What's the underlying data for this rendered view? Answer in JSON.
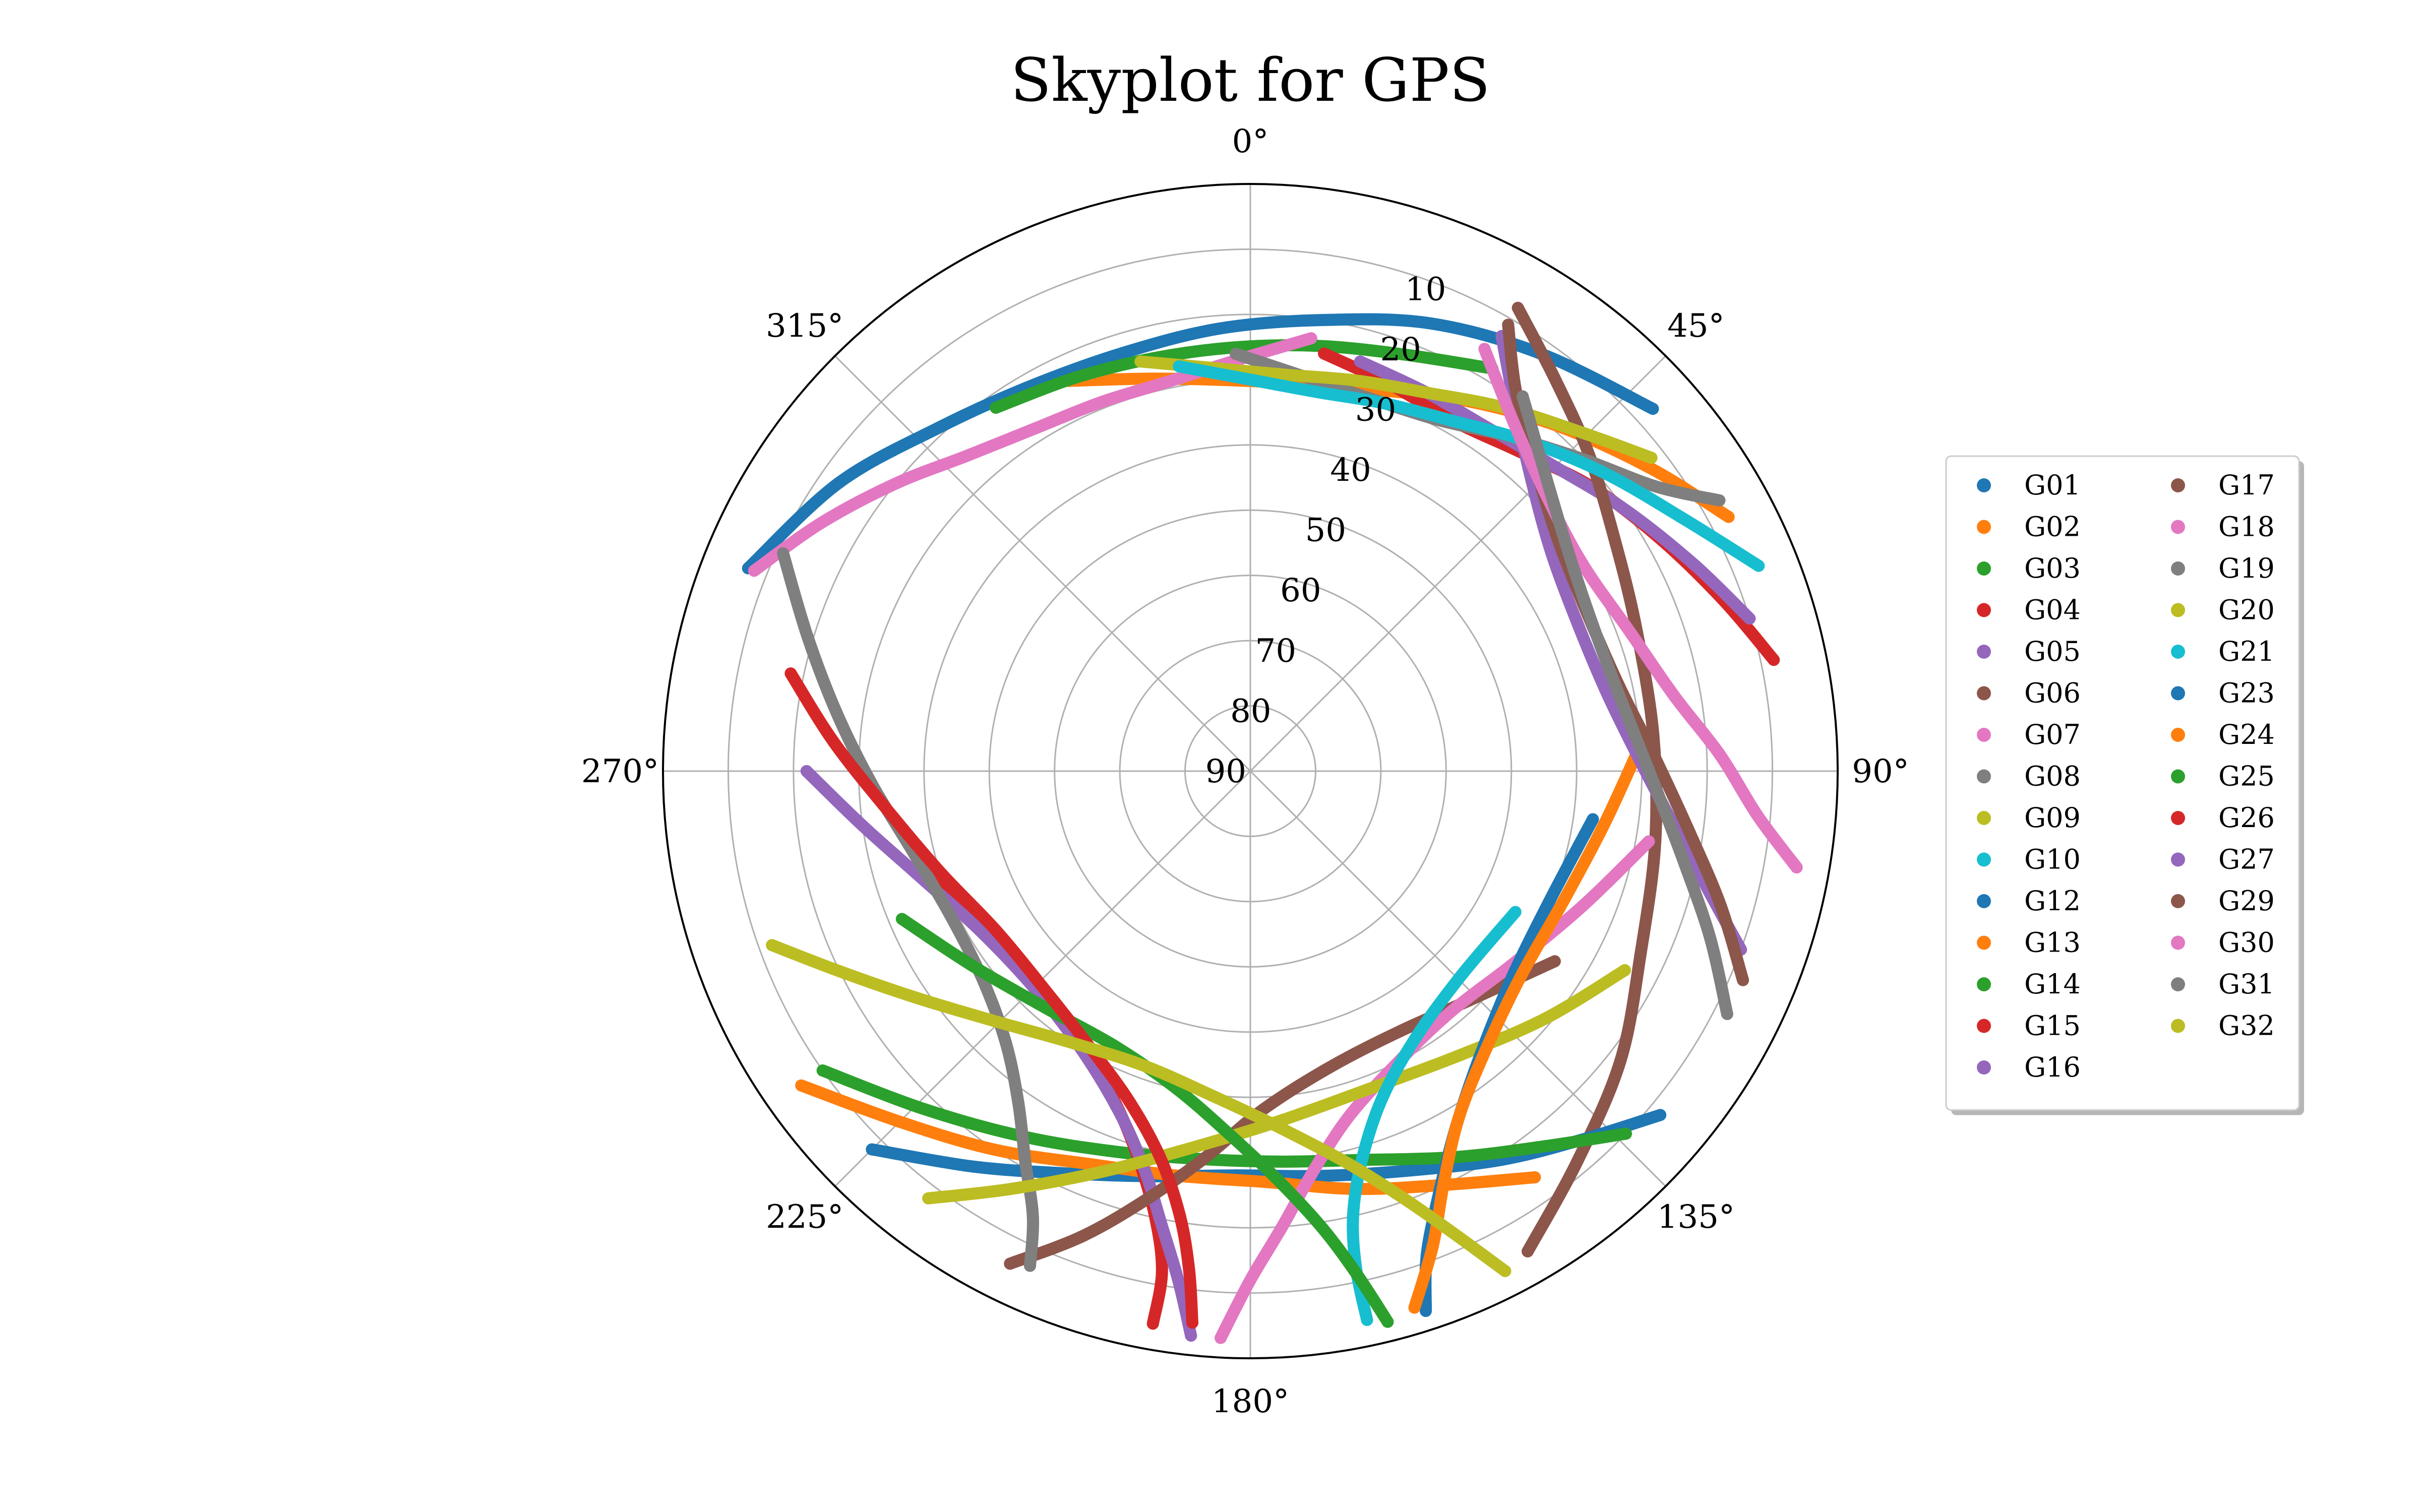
{
  "chart_data": {
    "type": "polar-scatter",
    "title": "Skyplot for GPS",
    "theta_direction": "clockwise",
    "theta_zero": "north",
    "radial_axis": "elevation",
    "rlim": [
      90,
      0
    ],
    "angle_ticks": [
      "0°",
      "45°",
      "90°",
      "135°",
      "180°",
      "225°",
      "270°",
      "315°"
    ],
    "radial_ticks": [
      "10",
      "20",
      "30",
      "40",
      "50",
      "60",
      "70",
      "80",
      "90"
    ],
    "grid": true,
    "legend_placement": "right",
    "legend_columns": 2,
    "series": [
      {
        "name": "G01",
        "color": "#1f77b4",
        "points": [
          [
            292,
            7
          ],
          [
            305,
            13
          ],
          [
            318,
            19
          ],
          [
            330,
            22
          ],
          [
            343,
            23
          ],
          [
            356,
            22
          ],
          [
            9,
            20
          ],
          [
            22,
            16
          ],
          [
            35,
            12
          ],
          [
            48,
            7
          ]
        ]
      },
      {
        "name": "G02",
        "color": "#ff7f0e",
        "points": [
          [
            335,
            24
          ],
          [
            346,
            28
          ],
          [
            357,
            30
          ],
          [
            9,
            30
          ],
          [
            20,
            28
          ],
          [
            31,
            24
          ],
          [
            42,
            19
          ],
          [
            53,
            13
          ],
          [
            62,
            7
          ]
        ]
      },
      {
        "name": "G03",
        "color": "#2ca02c",
        "points": [
          [
            325,
            22
          ],
          [
            336,
            24
          ],
          [
            347,
            25
          ],
          [
            358,
            25
          ],
          [
            9,
            24
          ],
          [
            20,
            22
          ],
          [
            31,
            18
          ]
        ]
      },
      {
        "name": "G04",
        "color": "#d62728",
        "points": [
          [
            10,
            25
          ],
          [
            20,
            27
          ],
          [
            30,
            28
          ],
          [
            40,
            26
          ],
          [
            50,
            22
          ],
          [
            60,
            18
          ],
          [
            70,
            13
          ],
          [
            78,
            8
          ]
        ]
      },
      {
        "name": "G05",
        "color": "#9467bd",
        "points": [
          [
            15,
            25
          ],
          [
            25,
            26
          ],
          [
            35,
            26
          ],
          [
            45,
            24
          ],
          [
            55,
            20
          ],
          [
            65,
            15
          ],
          [
            73,
            10
          ]
        ]
      },
      {
        "name": "G06",
        "color": "#8c564b",
        "points": [
          [
            150,
            5
          ],
          [
            140,
            12
          ],
          [
            128,
            18
          ],
          [
            115,
            24
          ],
          [
            100,
            27
          ],
          [
            85,
            28
          ],
          [
            70,
            27
          ],
          [
            58,
            24
          ],
          [
            47,
            19
          ],
          [
            38,
            14
          ],
          [
            30,
            8
          ]
        ]
      },
      {
        "name": "G07",
        "color": "#e377c2",
        "points": [
          [
            292,
            8
          ],
          [
            300,
            14
          ],
          [
            309,
            20
          ],
          [
            318,
            25
          ],
          [
            328,
            28
          ],
          [
            338,
            29
          ],
          [
            348,
            29
          ],
          [
            358,
            27
          ],
          [
            8,
            23
          ]
        ]
      },
      {
        "name": "G08",
        "color": "#7f7f7f",
        "points": [
          [
            60,
            7
          ],
          [
            55,
            14
          ],
          [
            47,
            20
          ],
          [
            38,
            25
          ],
          [
            28,
            29
          ],
          [
            18,
            30
          ],
          [
            8,
            29
          ],
          [
            358,
            26
          ]
        ]
      },
      {
        "name": "G09",
        "color": "#bcbd22",
        "points": [
          [
            345,
            25
          ],
          [
            355,
            28
          ],
          [
            5,
            29
          ],
          [
            15,
            28
          ],
          [
            25,
            26
          ],
          [
            35,
            22
          ],
          [
            45,
            17
          ],
          [
            52,
            12
          ]
        ]
      },
      {
        "name": "G10",
        "color": "#17becf",
        "points": [
          [
            350,
            27
          ],
          [
            0,
            30
          ],
          [
            10,
            31
          ],
          [
            20,
            30
          ],
          [
            30,
            28
          ],
          [
            40,
            24
          ],
          [
            50,
            19
          ],
          [
            60,
            13
          ],
          [
            68,
            6
          ]
        ]
      },
      {
        "name": "G12",
        "color": "#1f77b4",
        "points": [
          [
            225,
            8
          ],
          [
            215,
            16
          ],
          [
            205,
            22
          ],
          [
            194,
            26
          ],
          [
            182,
            28
          ],
          [
            170,
            27
          ],
          [
            158,
            24
          ],
          [
            147,
            19
          ],
          [
            138,
            14
          ],
          [
            130,
            8
          ]
        ]
      },
      {
        "name": "G13",
        "color": "#ff7f0e",
        "points": [
          [
            235,
            6
          ],
          [
            225,
            14
          ],
          [
            214,
            20
          ],
          [
            202,
            25
          ],
          [
            190,
            27
          ],
          [
            178,
            27
          ],
          [
            166,
            24
          ],
          [
            155,
            20
          ],
          [
            145,
            14
          ]
        ]
      },
      {
        "name": "G14",
        "color": "#2ca02c",
        "points": [
          [
            235,
            10
          ],
          [
            224,
            18
          ],
          [
            212,
            24
          ],
          [
            200,
            28
          ],
          [
            188,
            30
          ],
          [
            176,
            30
          ],
          [
            164,
            28
          ],
          [
            152,
            23
          ],
          [
            142,
            17
          ],
          [
            134,
            10
          ]
        ]
      },
      {
        "name": "G15",
        "color": "#d62728",
        "points": [
          [
            190,
            4
          ],
          [
            190,
            12
          ],
          [
            192,
            20
          ],
          [
            196,
            28
          ],
          [
            202,
            35
          ],
          [
            212,
            41
          ],
          [
            225,
            44
          ],
          [
            240,
            43
          ],
          [
            252,
            39
          ]
        ]
      },
      {
        "name": "G16",
        "color": "#9467bd",
        "points": [
          [
            186,
            3
          ],
          [
            188,
            11
          ],
          [
            191,
            19
          ],
          [
            195,
            27
          ],
          [
            201,
            34
          ],
          [
            211,
            40
          ],
          [
            224,
            43
          ],
          [
            239,
            42
          ],
          [
            252,
            37
          ],
          [
            262,
            30
          ],
          [
            270,
            22
          ]
        ]
      },
      {
        "name": "G17",
        "color": "#8c564b",
        "points": [
          [
            206,
            6
          ],
          [
            200,
            14
          ],
          [
            194,
            22
          ],
          [
            187,
            30
          ],
          [
            178,
            38
          ],
          [
            165,
            43
          ],
          [
            150,
            44
          ],
          [
            135,
            41
          ],
          [
            122,
            35
          ]
        ]
      },
      {
        "name": "G18",
        "color": "#e377c2",
        "points": [
          [
            183,
            3
          ],
          [
            180,
            12
          ],
          [
            176,
            20
          ],
          [
            171,
            28
          ],
          [
            164,
            35
          ],
          [
            153,
            40
          ],
          [
            140,
            42
          ],
          [
            126,
            40
          ],
          [
            112,
            35
          ],
          [
            100,
            28
          ]
        ]
      },
      {
        "name": "G19",
        "color": "#7f7f7f",
        "points": [
          [
            204,
            7
          ],
          [
            206,
            14
          ],
          [
            210,
            21
          ],
          [
            215,
            28
          ],
          [
            222,
            34
          ],
          [
            232,
            38
          ],
          [
            244,
            39
          ],
          [
            256,
            37
          ],
          [
            268,
            32
          ],
          [
            278,
            26
          ],
          [
            287,
            19
          ],
          [
            295,
            11
          ]
        ]
      },
      {
        "name": "G20",
        "color": "#bcbd22",
        "points": [
          [
            217,
            8
          ],
          [
            210,
            16
          ],
          [
            201,
            24
          ],
          [
            190,
            31
          ],
          [
            176,
            36
          ],
          [
            160,
            38
          ],
          [
            144,
            36
          ],
          [
            130,
            31
          ],
          [
            118,
            25
          ]
        ]
      },
      {
        "name": "G21",
        "color": "#17becf",
        "points": [
          [
            168,
            4
          ],
          [
            168,
            12
          ],
          [
            167,
            20
          ],
          [
            164,
            28
          ],
          [
            158,
            36
          ],
          [
            148,
            42
          ],
          [
            134,
            45
          ],
          [
            118,
            44
          ]
        ]
      },
      {
        "name": "G23",
        "color": "#1f77b4",
        "points": [
          [
            162,
            3
          ],
          [
            160,
            11
          ],
          [
            156,
            19
          ],
          [
            150,
            27
          ],
          [
            141,
            34
          ],
          [
            128,
            39
          ],
          [
            113,
            40
          ],
          [
            98,
            37
          ]
        ]
      },
      {
        "name": "G24",
        "color": "#ff7f0e",
        "points": [
          [
            163,
            4
          ],
          [
            159,
            12
          ],
          [
            155,
            20
          ],
          [
            149,
            28
          ],
          [
            140,
            34
          ],
          [
            127,
            38
          ],
          [
            112,
            38
          ],
          [
            98,
            35
          ],
          [
            86,
            30
          ]
        ]
      },
      {
        "name": "G25",
        "color": "#2ca02c",
        "points": [
          [
            166,
            3
          ],
          [
            168,
            11
          ],
          [
            171,
            19
          ],
          [
            176,
            27
          ],
          [
            183,
            34
          ],
          [
            193,
            40
          ],
          [
            206,
            43
          ],
          [
            221,
            42
          ],
          [
            235,
            38
          ],
          [
            247,
            32
          ]
        ]
      },
      {
        "name": "G26",
        "color": "#d62728",
        "points": [
          [
            186,
            5
          ],
          [
            187,
            13
          ],
          [
            189,
            21
          ],
          [
            193,
            29
          ],
          [
            200,
            36
          ],
          [
            210,
            41
          ],
          [
            223,
            44
          ],
          [
            238,
            44
          ],
          [
            252,
            40
          ],
          [
            264,
            34
          ],
          [
            274,
            26
          ],
          [
            282,
            18
          ]
        ]
      },
      {
        "name": "G27",
        "color": "#9467bd",
        "points": [
          [
            110,
            10
          ],
          [
            105,
            17
          ],
          [
            98,
            24
          ],
          [
            89,
            30
          ],
          [
            78,
            34
          ],
          [
            66,
            35
          ],
          [
            54,
            33
          ],
          [
            44,
            28
          ],
          [
            36,
            21
          ],
          [
            30,
            13
          ]
        ]
      },
      {
        "name": "G29",
        "color": "#8c564b",
        "points": [
          [
            113,
            8
          ],
          [
            106,
            15
          ],
          [
            98,
            22
          ],
          [
            88,
            28
          ],
          [
            77,
            32
          ],
          [
            65,
            33
          ],
          [
            53,
            31
          ],
          [
            43,
            26
          ],
          [
            35,
            19
          ],
          [
            30,
            11
          ]
        ]
      },
      {
        "name": "G30",
        "color": "#e377c2",
        "points": [
          [
            100,
            5
          ],
          [
            95,
            12
          ],
          [
            88,
            18
          ],
          [
            80,
            24
          ],
          [
            70,
            28
          ],
          [
            58,
            30
          ],
          [
            47,
            28
          ],
          [
            37,
            23
          ],
          [
            29,
            16
          ]
        ]
      },
      {
        "name": "G31",
        "color": "#7f7f7f",
        "points": [
          [
            117,
            8
          ],
          [
            110,
            15
          ],
          [
            102,
            22
          ],
          [
            92,
            28
          ],
          [
            80,
            32
          ],
          [
            68,
            33
          ],
          [
            56,
            31
          ],
          [
            45,
            26
          ],
          [
            36,
            19
          ]
        ]
      },
      {
        "name": "G32",
        "color": "#bcbd22",
        "points": [
          [
            153,
            4
          ],
          [
            156,
            12
          ],
          [
            160,
            20
          ],
          [
            166,
            28
          ],
          [
            175,
            35
          ],
          [
            187,
            40
          ],
          [
            200,
            42
          ],
          [
            214,
            40
          ],
          [
            226,
            35
          ],
          [
            236,
            28
          ],
          [
            244,
            20
          ],
          [
            250,
            12
          ]
        ]
      }
    ]
  }
}
